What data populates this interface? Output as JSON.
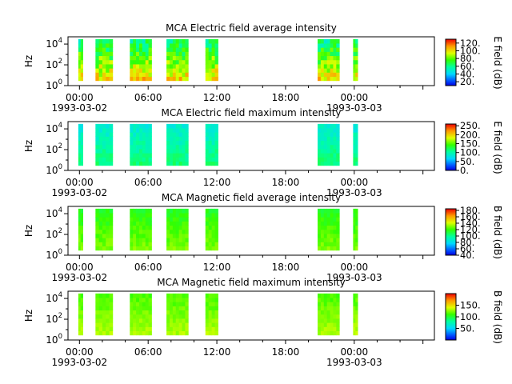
{
  "chart_data": [
    {
      "type": "heatmap",
      "title": "MCA  Electric field average intensity",
      "ylabel": "Hz",
      "yscale": "log",
      "ylim": [
        1,
        50000
      ],
      "yticks": [
        {
          "base": "10",
          "exp": "0",
          "value": 1
        },
        {
          "base": "10",
          "exp": "2",
          "value": 100
        },
        {
          "base": "10",
          "exp": "4",
          "value": 10000
        }
      ],
      "xlim_hours": [
        -1,
        31
      ],
      "xticks": [
        {
          "hour": 0,
          "time": "00:00",
          "date": "1993-03-02"
        },
        {
          "hour": 6,
          "time": "06:00",
          "date": ""
        },
        {
          "hour": 12,
          "time": "12:00",
          "date": ""
        },
        {
          "hour": 18,
          "time": "18:00",
          "date": ""
        },
        {
          "hour": 24,
          "time": "00:00",
          "date": "1993-03-03"
        }
      ],
      "colorbar": {
        "label": "E field (dB)",
        "range": [
          10,
          130
        ],
        "ticks": [
          "20.",
          "40.",
          "60.",
          "80.",
          "100.",
          "120."
        ],
        "tick_values": [
          20,
          40,
          60,
          80,
          100,
          120
        ]
      },
      "data_intervals_hours": [
        [
          -0.1,
          0.3
        ],
        [
          1.4,
          2.9
        ],
        [
          4.4,
          6.3
        ],
        [
          7.6,
          9.5
        ],
        [
          11.0,
          12.1
        ],
        [
          20.8,
          22.7
        ],
        [
          23.9,
          24.3
        ]
      ],
      "level_dB": 75,
      "variability_dB": 28
    },
    {
      "type": "heatmap",
      "title": "MCA  Electric field maximum intensity",
      "ylabel": "Hz",
      "yscale": "log",
      "ylim": [
        1,
        50000
      ],
      "yticks": [
        {
          "base": "10",
          "exp": "0",
          "value": 1
        },
        {
          "base": "10",
          "exp": "2",
          "value": 100
        },
        {
          "base": "10",
          "exp": "4",
          "value": 10000
        }
      ],
      "xlim_hours": [
        -1,
        31
      ],
      "xticks": [
        {
          "hour": 0,
          "time": "00:00",
          "date": "1993-03-02"
        },
        {
          "hour": 6,
          "time": "06:00",
          "date": ""
        },
        {
          "hour": 12,
          "time": "12:00",
          "date": ""
        },
        {
          "hour": 18,
          "time": "18:00",
          "date": ""
        },
        {
          "hour": 24,
          "time": "00:00",
          "date": "1993-03-03"
        }
      ],
      "colorbar": {
        "label": "E field (dB)",
        "range": [
          0,
          260
        ],
        "ticks": [
          "0.",
          "50.",
          "100.",
          "150.",
          "200.",
          "250."
        ],
        "tick_values": [
          0,
          50,
          100,
          150,
          200,
          250
        ]
      },
      "data_intervals_hours": [
        [
          -0.1,
          0.3
        ],
        [
          1.4,
          2.9
        ],
        [
          4.4,
          6.3
        ],
        [
          7.6,
          9.5
        ],
        [
          11.0,
          12.1
        ],
        [
          20.8,
          22.7
        ],
        [
          23.9,
          24.3
        ]
      ],
      "level_dB": 95,
      "variability_dB": 22
    },
    {
      "type": "heatmap",
      "title": "MCA  Magnetic field average intensity",
      "ylabel": "Hz",
      "yscale": "log",
      "ylim": [
        1,
        50000
      ],
      "yticks": [
        {
          "base": "10",
          "exp": "0",
          "value": 1
        },
        {
          "base": "10",
          "exp": "2",
          "value": 100
        },
        {
          "base": "10",
          "exp": "4",
          "value": 10000
        }
      ],
      "xlim_hours": [
        -1,
        31
      ],
      "xticks": [
        {
          "hour": 0,
          "time": "00:00",
          "date": "1993-03-02"
        },
        {
          "hour": 6,
          "time": "06:00",
          "date": ""
        },
        {
          "hour": 12,
          "time": "12:00",
          "date": ""
        },
        {
          "hour": 18,
          "time": "18:00",
          "date": ""
        },
        {
          "hour": 24,
          "time": "00:00",
          "date": "1993-03-03"
        }
      ],
      "colorbar": {
        "label": "B field (dB)",
        "range": [
          40,
          185
        ],
        "ticks": [
          "40.",
          "60.",
          "80.",
          "100.",
          "120.",
          "140.",
          "160.",
          "180."
        ],
        "tick_values": [
          40,
          60,
          80,
          100,
          120,
          140,
          160,
          180
        ]
      },
      "data_intervals_hours": [
        [
          -0.1,
          0.3
        ],
        [
          1.4,
          2.9
        ],
        [
          4.4,
          6.3
        ],
        [
          7.6,
          9.5
        ],
        [
          11.0,
          12.1
        ],
        [
          20.8,
          22.7
        ],
        [
          23.9,
          24.3
        ]
      ],
      "level_dB": 120,
      "variability_dB": 10
    },
    {
      "type": "heatmap",
      "title": "MCA  Magnetic field maximum intensity",
      "ylabel": "Hz",
      "yscale": "log",
      "ylim": [
        1,
        50000
      ],
      "yticks": [
        {
          "base": "10",
          "exp": "0",
          "value": 1
        },
        {
          "base": "10",
          "exp": "2",
          "value": 100
        },
        {
          "base": "10",
          "exp": "4",
          "value": 10000
        }
      ],
      "xlim_hours": [
        -1,
        31
      ],
      "xticks": [
        {
          "hour": 0,
          "time": "00:00",
          "date": "1993-03-02"
        },
        {
          "hour": 6,
          "time": "06:00",
          "date": ""
        },
        {
          "hour": 12,
          "time": "12:00",
          "date": ""
        },
        {
          "hour": 18,
          "time": "18:00",
          "date": ""
        },
        {
          "hour": 24,
          "time": "00:00",
          "date": "1993-03-03"
        }
      ],
      "colorbar": {
        "label": "B field (dB)",
        "range": [
          0,
          200
        ],
        "ticks": [
          "50.",
          "100.",
          "150."
        ],
        "tick_values": [
          50,
          100,
          150
        ]
      },
      "data_intervals_hours": [
        [
          -0.1,
          0.3
        ],
        [
          1.4,
          2.9
        ],
        [
          4.4,
          6.3
        ],
        [
          7.6,
          9.5
        ],
        [
          11.0,
          12.1
        ],
        [
          20.8,
          22.7
        ],
        [
          23.9,
          24.3
        ]
      ],
      "level_dB": 120,
      "variability_dB": 12
    }
  ]
}
